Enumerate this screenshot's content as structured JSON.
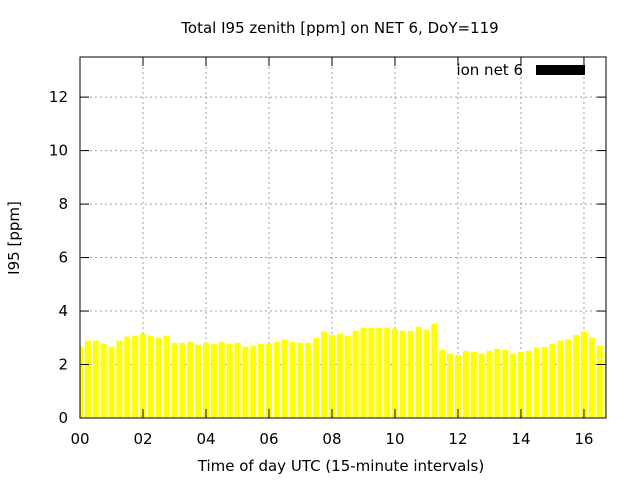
{
  "chart_data": {
    "type": "bar",
    "title": "Total I95 zenith [ppm] on NET 6, DoY=119",
    "xlabel": "Time of day UTC (15-minute intervals)",
    "ylabel": "I95 [ppm]",
    "xlim": [
      0,
      16.7
    ],
    "ylim": [
      0,
      13.5
    ],
    "x_step_hours": 0.25,
    "xticks": [
      0,
      2,
      4,
      6,
      8,
      10,
      12,
      14,
      16
    ],
    "xtick_labels": [
      "00",
      "02",
      "04",
      "06",
      "08",
      "10",
      "12",
      "14",
      "16"
    ],
    "yticks": [
      0,
      2,
      4,
      6,
      8,
      10,
      12
    ],
    "ytick_labels": [
      "0",
      "2",
      "4",
      "6",
      "8",
      "10",
      "12"
    ],
    "grid": true,
    "legend_placement": "top-right",
    "series": [
      {
        "name": "ion net 6",
        "color": "#ffff00",
        "legend_color": "#000000",
        "values": [
          2.66,
          2.89,
          2.89,
          2.78,
          2.66,
          2.89,
          3.04,
          3.08,
          3.15,
          3.08,
          3.0,
          3.08,
          2.81,
          2.81,
          2.85,
          2.74,
          2.81,
          2.78,
          2.85,
          2.78,
          2.81,
          2.66,
          2.7,
          2.78,
          2.78,
          2.85,
          2.93,
          2.85,
          2.81,
          2.81,
          3.0,
          3.23,
          3.11,
          3.15,
          3.08,
          3.26,
          3.38,
          3.38,
          3.38,
          3.38,
          3.34,
          3.26,
          3.26,
          3.41,
          3.3,
          3.53,
          2.55,
          2.4,
          2.36,
          2.51,
          2.47,
          2.4,
          2.51,
          2.59,
          2.55,
          2.4,
          2.47,
          2.51,
          2.63,
          2.66,
          2.78,
          2.89,
          2.93,
          3.11,
          3.23,
          3.0,
          2.7,
          2.51
        ]
      }
    ]
  }
}
